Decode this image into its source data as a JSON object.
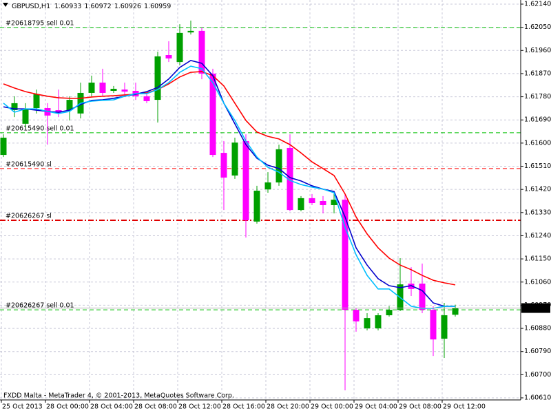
{
  "chart_data": {
    "type": "candlestick",
    "title": "GBPUSD,H1",
    "footer": "FXDD Malta - MetaTrader 4, © 2001-2013, MetaQuotes Software Corp.",
    "x": [
      "25 Oct 2013",
      null,
      null,
      null,
      "28 Oct 00:00",
      null,
      null,
      null,
      "28 Oct 04:00",
      null,
      null,
      null,
      "28 Oct 08:00",
      null,
      null,
      null,
      "28 Oct 12:00",
      null,
      null,
      null,
      "28 Oct 16:00",
      null,
      null,
      null,
      "28 Oct 20:00",
      null,
      null,
      null,
      "29 Oct 00:00",
      null,
      null,
      null,
      "29 Oct 04:00",
      null,
      null,
      null,
      "29 Oct 08:00",
      null,
      null,
      null,
      "29 Oct 12:00",
      null
    ],
    "open": [
      1.61554,
      1.61728,
      1.61675,
      1.61736,
      1.61736,
      1.61728,
      1.61728,
      1.61715,
      1.61795,
      1.61835,
      1.61803,
      1.61808,
      1.61803,
      1.61782,
      1.61768,
      1.61942,
      1.61915,
      1.6203,
      1.62036,
      1.6187,
      1.61562,
      1.61474,
      1.61608,
      1.61295,
      1.6142,
      1.61447,
      1.61581,
      1.6134,
      1.61386,
      1.61375,
      1.61359,
      1.6138,
      1.60952,
      1.6088,
      1.6088,
      1.60931,
      1.60952,
      1.61054,
      1.61054,
      1.60952,
      1.6084,
      1.60933
    ],
    "high": [
      1.61634,
      1.61782,
      1.61755,
      1.61808,
      1.61755,
      1.61808,
      1.61782,
      1.61835,
      1.61862,
      1.61889,
      1.61822,
      1.61835,
      1.61835,
      1.61795,
      1.61955,
      1.61996,
      1.62062,
      1.62076,
      1.62049,
      1.61889,
      1.61608,
      1.61621,
      1.61634,
      1.61434,
      1.61487,
      1.61594,
      1.61634,
      1.61394,
      1.61402,
      1.61394,
      1.61402,
      1.61402,
      1.60958,
      1.60939,
      1.60939,
      1.60966,
      1.61153,
      1.61118,
      1.61132,
      1.60966,
      1.60979,
      1.60972
    ],
    "low": [
      1.61546,
      1.61701,
      1.61661,
      1.61715,
      1.61594,
      1.61701,
      1.61688,
      1.61696,
      1.61782,
      1.61782,
      1.61795,
      1.61782,
      1.61768,
      1.61755,
      1.6168,
      1.61915,
      1.61902,
      1.62022,
      1.61848,
      1.61546,
      1.6134,
      1.61461,
      1.61233,
      1.61287,
      1.61407,
      1.61434,
      1.61335,
      1.61335,
      1.61359,
      1.61327,
      1.61327,
      1.60639,
      1.60867,
      1.60872,
      1.60872,
      1.60926,
      1.60947,
      1.61006,
      1.60939,
      1.60773,
      1.60765,
      1.60926
    ],
    "close": [
      1.61621,
      1.61755,
      1.61733,
      1.6179,
      1.61707,
      1.61715,
      1.61768,
      1.61795,
      1.61835,
      1.61795,
      1.61811,
      1.618,
      1.61782,
      1.61763,
      1.61937,
      1.61929,
      1.62028,
      1.62036,
      1.6187,
      1.61554,
      1.61466,
      1.61602,
      1.613,
      1.61415,
      1.61447,
      1.61576,
      1.6134,
      1.61386,
      1.61367,
      1.61359,
      1.6138,
      1.60952,
      1.60907,
      1.6092,
      1.60931,
      1.60952,
      1.61051,
      1.61033,
      1.60952,
      1.60837,
      1.60931,
      1.60959
    ],
    "up_color": "#00a000",
    "down_color": "#ff00ff",
    "series": [
      {
        "color": "#ff0000",
        "values": [
          1.6183,
          1.61814,
          1.618,
          1.6179,
          1.61782,
          1.61776,
          1.61774,
          1.61774,
          1.61779,
          1.61782,
          1.61784,
          1.61787,
          1.6179,
          1.61795,
          1.61808,
          1.6183,
          1.61857,
          1.61875,
          1.61878,
          1.61862,
          1.61822,
          1.61755,
          1.61688,
          1.61643,
          1.61626,
          1.61616,
          1.61594,
          1.61562,
          1.61527,
          1.61501,
          1.61474,
          1.61402,
          1.61313,
          1.61247,
          1.61193,
          1.61153,
          1.61126,
          1.61108,
          1.61086,
          1.61067,
          1.61057,
          1.61049
        ]
      },
      {
        "color": "#0000cc",
        "values": [
          1.61741,
          1.61733,
          1.61733,
          1.61728,
          1.61723,
          1.6172,
          1.61728,
          1.6175,
          1.61766,
          1.61768,
          1.61774,
          1.61782,
          1.6179,
          1.618,
          1.61816,
          1.61849,
          1.61894,
          1.61921,
          1.6191,
          1.61862,
          1.61755,
          1.61675,
          1.61594,
          1.61541,
          1.61514,
          1.61501,
          1.61466,
          1.61453,
          1.61434,
          1.61421,
          1.61412,
          1.61313,
          1.61193,
          1.61126,
          1.61073,
          1.61046,
          1.61038,
          1.61046,
          1.61027,
          1.60979,
          1.60966,
          1.60966
        ]
      },
      {
        "color": "#00bfff",
        "values": [
          1.61755,
          1.6172,
          1.61733,
          1.61733,
          1.61723,
          1.61715,
          1.61723,
          1.61755,
          1.61763,
          1.61766,
          1.61768,
          1.61782,
          1.61792,
          1.61792,
          1.61808,
          1.61835,
          1.61875,
          1.61899,
          1.61889,
          1.61835,
          1.61755,
          1.61688,
          1.61608,
          1.61546,
          1.61506,
          1.61487,
          1.61455,
          1.61439,
          1.61429,
          1.61421,
          1.61407,
          1.61273,
          1.61166,
          1.61086,
          1.61033,
          1.61033,
          1.61,
          1.60966,
          1.60958,
          1.60958,
          1.60966,
          1.60966
        ]
      }
    ],
    "levels": [
      {
        "label": "#20618795 sell 0.01",
        "value": 1.62049,
        "color": "#00c000",
        "style": "dash"
      },
      {
        "label": "#20615490 sell 0.01",
        "value": 1.6164,
        "color": "#00c000",
        "style": "dash"
      },
      {
        "label": "#20615490 sl",
        "value": 1.61501,
        "color": "#ff0000",
        "style": "dash"
      },
      {
        "label": "#20626267 sl",
        "value": 1.613,
        "color": "#e00000",
        "style": "dashdot"
      },
      {
        "label": "#20626267 sell 0.01",
        "value": 1.60952,
        "color": "#00c000",
        "style": "dash"
      }
    ],
    "ylim": [
      1.60602,
      1.62156
    ],
    "yticks": [
      {
        "value": 1.6214,
        "label": "1.62140"
      },
      {
        "value": 1.6205,
        "label": "1.62050"
      },
      {
        "value": 1.6196,
        "label": "1.61960"
      },
      {
        "value": 1.6187,
        "label": "1.61870"
      },
      {
        "value": 1.6178,
        "label": "1.61780"
      },
      {
        "value": 1.6169,
        "label": "1.61690"
      },
      {
        "value": 1.616,
        "label": "1.61600"
      },
      {
        "value": 1.6151,
        "label": "1.61510"
      },
      {
        "value": 1.6142,
        "label": "1.61420"
      },
      {
        "value": 1.6133,
        "label": "1.61330"
      },
      {
        "value": 1.6124,
        "label": "1.61240"
      },
      {
        "value": 1.6115,
        "label": "1.61150"
      },
      {
        "value": 1.6106,
        "label": "1.61060"
      },
      {
        "value": 1.6097,
        "label": "1.60970"
      },
      {
        "value": 1.6088,
        "label": "1.60880"
      },
      {
        "value": 1.6079,
        "label": "1.60790"
      },
      {
        "value": 1.607,
        "label": "1.60700"
      },
      {
        "value": 1.6061,
        "label": "1.60610"
      }
    ],
    "grid": true
  }
}
